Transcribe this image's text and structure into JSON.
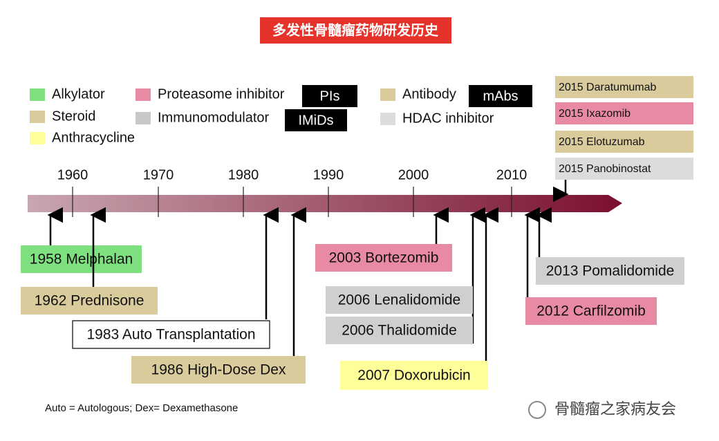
{
  "title": "多发性骨髓瘤药物研发历史",
  "legend": [
    {
      "label": "Alkylator",
      "color": "#7ee07e"
    },
    {
      "label": "Steroid",
      "color": "#d9cb9b"
    },
    {
      "label": "Anthracycline",
      "color": "#ffff99"
    },
    {
      "label": "Proteasome inhibitor",
      "color": "#e98aa4"
    },
    {
      "label": "Immunomodulator",
      "color": "#c8c8c8"
    },
    {
      "label": "Antibody",
      "color": "#d9cb9b"
    },
    {
      "label": "HDAC inhibitor",
      "color": "#dcdcdc"
    }
  ],
  "badges": [
    "PIs",
    "IMiDs",
    "mAbs"
  ],
  "axis_ticks": [
    "1960",
    "1970",
    "1980",
    "1990",
    "2000",
    "2010"
  ],
  "events": [
    {
      "label": "1958  Melphalan",
      "color": "#7ee07e"
    },
    {
      "label": "1962  Prednisone",
      "color": "#d9cb9b"
    },
    {
      "label": "1983 Auto Transplantation",
      "color": "#ffffff"
    },
    {
      "label": "1986 High-Dose Dex",
      "color": "#d9cb9b"
    },
    {
      "label": "2003  Bortezomib",
      "color": "#e98aa4"
    },
    {
      "label": "2006  Lenalidomide",
      "color": "#cfcfcf"
    },
    {
      "label": "2006  Thalidomide",
      "color": "#cfcfcf"
    },
    {
      "label": "2007  Doxorubicin",
      "color": "#ffff99"
    },
    {
      "label": "2012  Carfilzomib",
      "color": "#e98aa4"
    },
    {
      "label": "2013 Pomalidomide",
      "color": "#cfcfcf"
    }
  ],
  "recent": [
    {
      "label": "2015 Daratumumab",
      "color": "#d9cb9b"
    },
    {
      "label": "2015 Ixazomib",
      "color": "#e98aa4"
    },
    {
      "label": "2015 Elotuzumab",
      "color": "#d9cb9b"
    },
    {
      "label": "2015 Panobinostat",
      "color": "#dcdcdc"
    }
  ],
  "footnote": "Auto =  Autologous; Dex= Dexamethasone",
  "watermark": "骨髓瘤之家病友会"
}
